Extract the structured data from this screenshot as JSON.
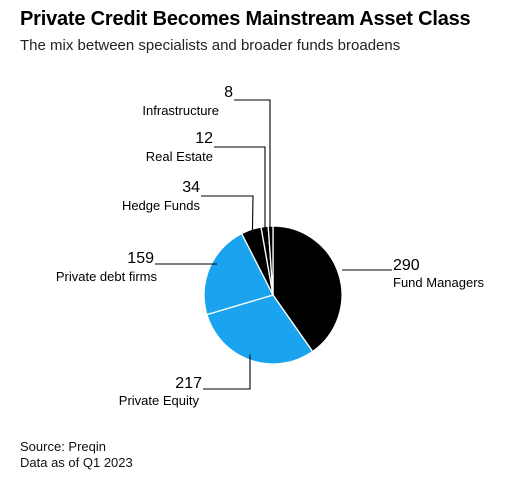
{
  "title": "Private Credit Becomes Mainstream Asset Class",
  "subtitle": "The mix between specialists and broader funds broadens",
  "chart_data": {
    "type": "pie",
    "slices": [
      {
        "label": "Fund Managers",
        "value": 290,
        "color": "#000000"
      },
      {
        "label": "Private Equity",
        "value": 217,
        "color": "#1aa3ef"
      },
      {
        "label": "Private debt firms",
        "value": 159,
        "color": "#1aa3ef"
      },
      {
        "label": "Hedge Funds",
        "value": 34,
        "color": "#000000"
      },
      {
        "label": "Real Estate",
        "value": 12,
        "color": "#000000"
      },
      {
        "label": "Infrastructure",
        "value": 8,
        "color": "#000000"
      }
    ]
  },
  "footer": {
    "source_label": "Source: ",
    "source": "Preqin",
    "data_as_of_label": "Data as of ",
    "data_as_of": "Q1 2023"
  }
}
